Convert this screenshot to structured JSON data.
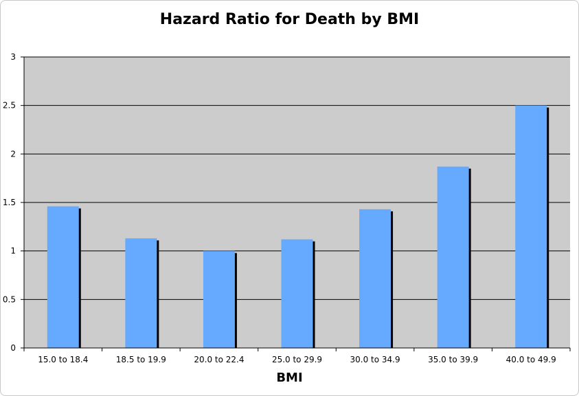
{
  "chart_data": {
    "type": "bar",
    "title": "Hazard Ratio for Death by BMI",
    "xlabel": "BMI",
    "ylabel": "",
    "categories": [
      "15.0 to 18.4",
      "18.5 to 19.9",
      "20.0 to 22.4",
      "25.0 to 29.9",
      "30.0 to 34.9",
      "35.0 to 39.9",
      "40.0 to 49.9"
    ],
    "values": [
      1.46,
      1.13,
      1.0,
      1.12,
      1.43,
      1.87,
      2.5
    ],
    "ylim": [
      0,
      3
    ],
    "yticks": [
      "0",
      "0.5",
      "1",
      "1.5",
      "2",
      "2.5",
      "3"
    ],
    "grid": true,
    "legend": "none",
    "colors": {
      "bar": "#66aaff",
      "bar_shadow": "#000000",
      "plot_background": "#cccccc",
      "gridline": "#000000"
    }
  }
}
